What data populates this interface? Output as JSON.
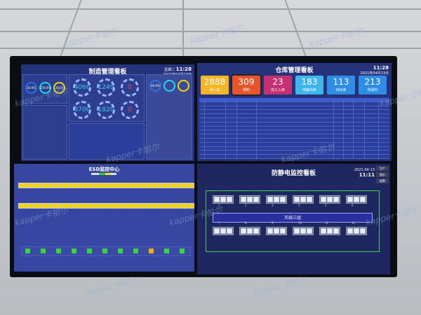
{
  "watermark": "kapper卡帕尔",
  "manufacturing": {
    "title": "制造管理看板",
    "clock": {
      "weekday": "星期二",
      "time": "11:28",
      "date": "2021年04月13日"
    },
    "rings": [
      {
        "value": "30.0%",
        "color": "#2f6fe0"
      },
      {
        "value": "150.0%",
        "color": "#20d8e8"
      },
      {
        "value": "20/20",
        "color": "#f2d400"
      }
    ],
    "dials_row1": [
      "4066",
      "1249",
      "0"
    ],
    "dials_row2": [
      "3700",
      "1820",
      "0"
    ],
    "right_rings": [
      {
        "value": "40.0%",
        "color": "#2f6fe0"
      },
      {
        "value": "",
        "color": "#20d8e8"
      },
      {
        "value": "",
        "color": "#f2d400"
      }
    ]
  },
  "warehouse": {
    "title": "仓库管理看板",
    "clock": {
      "time": "11:28",
      "date": "2021年04月13日"
    },
    "cards": [
      {
        "value": "2888",
        "label": "待入库",
        "color": "#f4b526"
      },
      {
        "value": "309",
        "label": "领料",
        "color": "#e9552b"
      },
      {
        "value": "23",
        "label": "完工入库",
        "color": "#c53070"
      },
      {
        "value": "183",
        "label": "待备出库",
        "color": "#3fb6ec"
      },
      {
        "value": "113",
        "label": "待出库",
        "color": "#2e8de4"
      },
      {
        "value": "213",
        "label": "待退料",
        "color": "#2e8de4"
      }
    ]
  },
  "esd": {
    "title": "ESD监控中心"
  },
  "antistatic": {
    "title": "防静电监控看板",
    "date": "2021-04-13",
    "time": "11:11",
    "line_label": "灭线三组",
    "buttons": [
      "生产",
      "报价",
      "报警"
    ],
    "top_stations": [
      "1",
      "2",
      "3",
      "4",
      "5",
      "6"
    ],
    "bottom_stations": [
      "7",
      "8",
      "9",
      "10",
      "11",
      "12"
    ]
  }
}
